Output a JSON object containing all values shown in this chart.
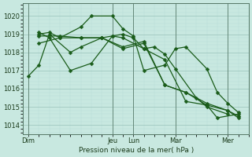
{
  "background_color": "#c8e8e0",
  "grid_color_major": "#a0c8c0",
  "grid_color_minor": "#b8ddd8",
  "line_color": "#1a5c1a",
  "ylabel": "Pression niveau de la mer( hPa )",
  "ylim": [
    1013.5,
    1020.7
  ],
  "yticks": [
    1014,
    1015,
    1016,
    1017,
    1018,
    1019,
    1020
  ],
  "day_labels": [
    "Dim",
    "Jeu",
    "Lun",
    "Mar",
    "Mer"
  ],
  "day_x": [
    0,
    8,
    10,
    14,
    19
  ],
  "vline_x": [
    0,
    8,
    10,
    14,
    19
  ],
  "xlim": [
    -0.5,
    21
  ],
  "series": [
    {
      "x": [
        0,
        1,
        2,
        4,
        5,
        7,
        8,
        9,
        10,
        11,
        12,
        13,
        14,
        16,
        17,
        19
      ],
      "y": [
        1016.7,
        1017.3,
        1019.0,
        1018.0,
        1018.3,
        1018.8,
        1018.9,
        1019.0,
        1018.8,
        1018.2,
        1018.3,
        1017.9,
        1017.1,
        1015.5,
        1015.0,
        1014.6
      ]
    },
    {
      "x": [
        1,
        2,
        3,
        5,
        6,
        8,
        9,
        10,
        11,
        13,
        14,
        15,
        17,
        18,
        19,
        20
      ],
      "y": [
        1019.0,
        1019.1,
        1018.8,
        1019.4,
        1020.0,
        1020.0,
        1019.3,
        1018.9,
        1017.0,
        1017.3,
        1018.2,
        1018.3,
        1017.1,
        1015.8,
        1015.2,
        1014.7
      ]
    },
    {
      "x": [
        1,
        3,
        5,
        7,
        9,
        11,
        13,
        15,
        17,
        19,
        20
      ],
      "y": [
        1018.5,
        1018.8,
        1018.8,
        1018.8,
        1018.2,
        1018.5,
        1016.2,
        1015.8,
        1015.2,
        1014.8,
        1014.5
      ]
    },
    {
      "x": [
        1,
        2,
        4,
        6,
        8,
        9,
        11,
        13,
        15,
        17,
        18,
        20
      ],
      "y": [
        1019.1,
        1018.8,
        1017.0,
        1017.4,
        1018.9,
        1018.8,
        1018.2,
        1017.6,
        1015.3,
        1015.1,
        1014.4,
        1014.6
      ]
    },
    {
      "x": [
        1,
        3,
        5,
        7,
        9,
        11,
        13,
        15,
        17,
        19,
        20
      ],
      "y": [
        1018.9,
        1018.9,
        1018.8,
        1018.8,
        1018.3,
        1018.6,
        1016.2,
        1015.8,
        1015.1,
        1014.8,
        1014.4
      ]
    }
  ]
}
